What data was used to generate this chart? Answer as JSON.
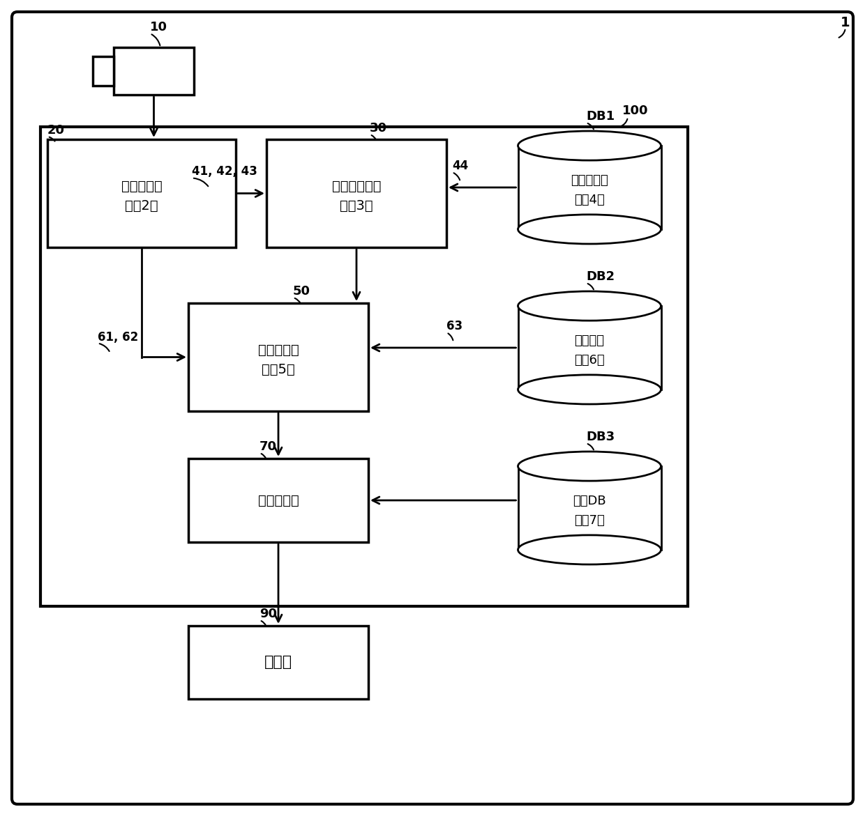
{
  "bg_color": "#ffffff",
  "box_20_line1": "环境测量部",
  "box_20_line2": "（图2）",
  "box_30_line1": "组行为控制部",
  "box_30_line2": "（图3）",
  "box_50_line1": "行为控制部",
  "box_50_line2": "（图5）",
  "box_70_text": "信息提示部",
  "box_90_text": "监视器",
  "db1_line1": "组行为模型",
  "db1_line2": "（图4）",
  "db2_line1": "行为模型",
  "db2_line2": "（图6）",
  "db3_line1": "信息DB",
  "db3_line2": "（图7）",
  "lbl_1": "1",
  "lbl_10": "10",
  "lbl_20": "20",
  "lbl_30": "30",
  "lbl_41_42_43": "41, 42, 43",
  "lbl_44": "44",
  "lbl_50": "50",
  "lbl_61_62": "61, 62",
  "lbl_63": "63",
  "lbl_70": "70",
  "lbl_90": "90",
  "lbl_100": "100",
  "lbl_DB1": "DB1",
  "lbl_DB2": "DB2",
  "lbl_DB3": "DB3"
}
